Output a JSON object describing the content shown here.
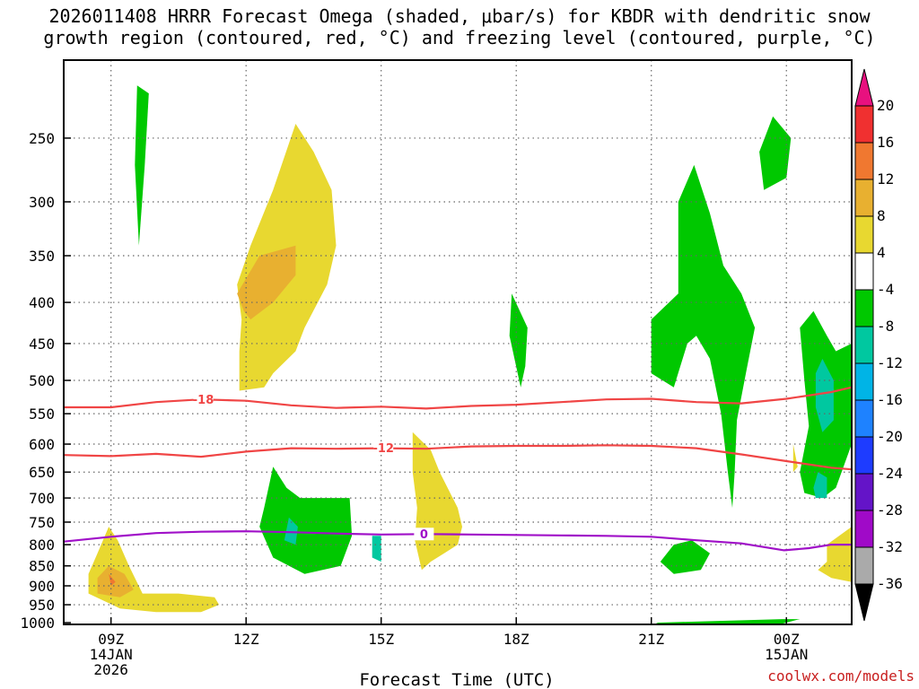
{
  "title": {
    "line1": "2026011408 HRRR Forecast Omega (shaded, μbar/s) for KBDR with dendritic snow",
    "line2": "growth region (contoured, red, °C) and freezing level (contoured, purple, °C)"
  },
  "credit": "coolwx.com/models",
  "chart_data": {
    "type": "contour-time-height",
    "title": "2026011408 HRRR Forecast Omega (shaded, μbar/s) for KBDR with dendritic snow growth region (contoured, red, °C) and freezing level (contoured, purple, °C)",
    "xlabel": "Forecast Time (UTC)",
    "ylabel": "",
    "x_range_hours_from_09Z": [
      -1.05,
      16.45
    ],
    "y_axis": {
      "scale": "log-pressure",
      "range_hPa": [
        1005,
        200
      ],
      "inverted": true
    },
    "x_ticks": [
      {
        "hours": 0,
        "lines": [
          "09Z",
          "14JAN",
          "2026"
        ]
      },
      {
        "hours": 3,
        "lines": [
          "12Z"
        ]
      },
      {
        "hours": 6,
        "lines": [
          "15Z"
        ]
      },
      {
        "hours": 9,
        "lines": [
          "18Z"
        ]
      },
      {
        "hours": 12,
        "lines": [
          "21Z"
        ]
      },
      {
        "hours": 15,
        "lines": [
          "00Z",
          "15JAN"
        ]
      }
    ],
    "y_ticks": [
      250,
      300,
      350,
      400,
      450,
      500,
      550,
      600,
      650,
      700,
      750,
      800,
      850,
      900,
      950,
      1000
    ],
    "colorbar": {
      "labels": [
        "20",
        "16",
        "12",
        "8",
        "4",
        "-4",
        "-8",
        "-12",
        "-16",
        "-20",
        "-24",
        "-28",
        "-32",
        "-36"
      ],
      "colors": [
        "#e8117f",
        "#f03030",
        "#f07830",
        "#e8b030",
        "#e8d830",
        "#ffffff",
        "#00c800",
        "#00c8a0",
        "#00b4e6",
        "#1e82ff",
        "#1e3cff",
        "#6414c8",
        "#a00ac8",
        "#aaaaaa",
        "#000000"
      ]
    },
    "omega_shading": [
      {
        "level": "-4 to -8",
        "color": "#00c800",
        "polygons": [
          [
            [
              0.58,
              215
            ],
            [
              0.84,
              220
            ],
            [
              0.75,
              270
            ],
            [
              0.62,
              340
            ],
            [
              0.53,
              270
            ]
          ],
          [
            [
              3.4,
              720
            ],
            [
              3.6,
              640
            ],
            [
              3.9,
              680
            ],
            [
              4.2,
              700
            ],
            [
              5.3,
              700
            ],
            [
              5.35,
              780
            ],
            [
              5.1,
              850
            ],
            [
              4.3,
              870
            ],
            [
              3.6,
              830
            ],
            [
              3.3,
              760
            ]
          ],
          [
            [
              8.9,
              390
            ],
            [
              9.25,
              430
            ],
            [
              9.2,
              480
            ],
            [
              9.1,
              510
            ],
            [
              8.85,
              440
            ]
          ],
          [
            [
              12.5,
              800
            ],
            [
              12.9,
              790
            ],
            [
              13.3,
              820
            ],
            [
              13.1,
              860
            ],
            [
              12.5,
              870
            ],
            [
              12.2,
              840
            ]
          ],
          [
            [
              12.1,
              1000
            ],
            [
              14.9,
              990
            ],
            [
              15.3,
              990
            ],
            [
              14.7,
              1010
            ],
            [
              12.3,
              1010
            ]
          ],
          [
            [
              14.4,
              260
            ],
            [
              14.7,
              235
            ],
            [
              15.1,
              250
            ],
            [
              15.0,
              280
            ],
            [
              14.5,
              290
            ]
          ],
          [
            [
              15.9,
              440
            ],
            [
              16.1,
              460
            ],
            [
              16.45,
              450
            ],
            [
              16.45,
              600
            ],
            [
              16.1,
              680
            ],
            [
              15.8,
              700
            ],
            [
              15.4,
              690
            ],
            [
              15.3,
              650
            ],
            [
              15.5,
              570
            ],
            [
              15.4,
              500
            ],
            [
              15.3,
              430
            ],
            [
              15.6,
              410
            ]
          ],
          [
            [
              12.6,
              300
            ],
            [
              12.95,
              270
            ],
            [
              13.3,
              310
            ],
            [
              13.6,
              360
            ],
            [
              14.0,
              390
            ],
            [
              14.3,
              430
            ],
            [
              14.1,
              490
            ],
            [
              13.9,
              560
            ],
            [
              13.85,
              650
            ],
            [
              13.8,
              720
            ],
            [
              13.7,
              650
            ],
            [
              13.55,
              550
            ],
            [
              13.3,
              470
            ],
            [
              13.0,
              440
            ],
            [
              12.8,
              450
            ],
            [
              12.5,
              510
            ],
            [
              12.0,
              490
            ],
            [
              12.0,
              420
            ],
            [
              12.6,
              390
            ]
          ]
        ]
      },
      {
        "level": "-8 to -12",
        "color": "#00c8a0",
        "polygons": [
          [
            [
              3.95,
              740
            ],
            [
              4.15,
              760
            ],
            [
              4.1,
              800
            ],
            [
              3.85,
              790
            ]
          ],
          [
            [
              5.8,
              780
            ],
            [
              6.0,
              780
            ],
            [
              6.0,
              840
            ],
            [
              5.8,
              830
            ]
          ],
          [
            [
              15.8,
              470
            ],
            [
              16.05,
              500
            ],
            [
              16.05,
              560
            ],
            [
              15.8,
              580
            ],
            [
              15.65,
              540
            ],
            [
              15.65,
              490
            ]
          ],
          [
            [
              15.7,
              650
            ],
            [
              15.9,
              660
            ],
            [
              15.9,
              700
            ],
            [
              15.65,
              700
            ],
            [
              15.6,
              680
            ]
          ]
        ]
      },
      {
        "level": "4 to 8",
        "color": "#e8d830",
        "polygons": [
          [
            [
              2.8,
              380
            ],
            [
              3.1,
              340
            ],
            [
              3.6,
              290
            ],
            [
              4.1,
              240
            ],
            [
              4.5,
              260
            ],
            [
              4.9,
              290
            ],
            [
              5.0,
              340
            ],
            [
              4.8,
              380
            ],
            [
              4.3,
              430
            ],
            [
              4.1,
              460
            ],
            [
              3.6,
              490
            ],
            [
              3.4,
              510
            ],
            [
              2.85,
              515
            ],
            [
              2.85,
              460
            ],
            [
              2.9,
              420
            ]
          ],
          [
            [
              6.7,
              580
            ],
            [
              7.1,
              610
            ],
            [
              7.3,
              650
            ],
            [
              7.7,
              720
            ],
            [
              7.8,
              760
            ],
            [
              7.7,
              800
            ],
            [
              7.4,
              820
            ],
            [
              7.1,
              840
            ],
            [
              6.9,
              860
            ],
            [
              6.75,
              790
            ],
            [
              6.8,
              720
            ],
            [
              6.7,
              650
            ],
            [
              6.7,
              610
            ]
          ],
          [
            [
              -0.5,
              870
            ],
            [
              -0.3,
              820
            ],
            [
              -0.05,
              760
            ],
            [
              0.15,
              790
            ],
            [
              0.4,
              850
            ],
            [
              0.7,
              920
            ],
            [
              1.5,
              920
            ],
            [
              2.3,
              930
            ],
            [
              2.4,
              950
            ],
            [
              2.0,
              970
            ],
            [
              1.0,
              970
            ],
            [
              0.2,
              960
            ],
            [
              -0.5,
              920
            ]
          ],
          [
            [
              15.15,
              600
            ],
            [
              15.25,
              640
            ],
            [
              15.15,
              650
            ]
          ],
          [
            [
              15.9,
              800
            ],
            [
              16.45,
              760
            ],
            [
              16.45,
              890
            ],
            [
              16.0,
              880
            ],
            [
              15.7,
              860
            ],
            [
              15.9,
              840
            ]
          ]
        ]
      },
      {
        "level": "8 to 12",
        "color": "#e8b030",
        "polygons": [
          [
            [
              2.8,
              390
            ],
            [
              3.3,
              350
            ],
            [
              4.1,
              340
            ],
            [
              4.1,
              370
            ],
            [
              3.6,
              400
            ],
            [
              3.1,
              420
            ],
            [
              2.95,
              410
            ]
          ],
          [
            [
              -0.3,
              880
            ],
            [
              -0.05,
              850
            ],
            [
              0.3,
              870
            ],
            [
              0.5,
              910
            ],
            [
              0.2,
              930
            ],
            [
              -0.3,
              920
            ]
          ]
        ]
      },
      {
        "level": "12 to 16",
        "color": "#f07830",
        "polygons": [
          [
            [
              -0.05,
              870
            ],
            [
              0.1,
              890
            ],
            [
              0.0,
              900
            ]
          ]
        ]
      }
    ],
    "contours": [
      {
        "name": "dendritic snow growth region",
        "color": "#f04545",
        "labels": [
          {
            "text": "-18",
            "x": 2.05
          }
        ],
        "points": [
          [
            -1.05,
            540
          ],
          [
            0,
            540
          ],
          [
            1,
            532
          ],
          [
            2,
            528
          ],
          [
            3,
            530
          ],
          [
            4,
            537
          ],
          [
            5,
            541
          ],
          [
            6,
            539
          ],
          [
            7,
            542
          ],
          [
            8,
            538
          ],
          [
            9,
            536
          ],
          [
            10,
            532
          ],
          [
            11,
            528
          ],
          [
            12,
            527
          ],
          [
            13,
            532
          ],
          [
            14,
            534
          ],
          [
            15,
            527
          ],
          [
            16,
            517
          ],
          [
            16.45,
            510
          ]
        ]
      },
      {
        "name": "dendritic snow growth region",
        "color": "#f04545",
        "labels": [
          {
            "text": "-12",
            "x": 6.05
          }
        ],
        "points": [
          [
            -1.05,
            619
          ],
          [
            0,
            621
          ],
          [
            1,
            617
          ],
          [
            2,
            622
          ],
          [
            3,
            613
          ],
          [
            4,
            607
          ],
          [
            5,
            608
          ],
          [
            6,
            607
          ],
          [
            7,
            608
          ],
          [
            8,
            604
          ],
          [
            9,
            603
          ],
          [
            10,
            603
          ],
          [
            11,
            602
          ],
          [
            12,
            603
          ],
          [
            13,
            607
          ],
          [
            14,
            618
          ],
          [
            15,
            630
          ],
          [
            16,
            642
          ],
          [
            16.45,
            645
          ]
        ]
      },
      {
        "name": "freezing level",
        "color": "#a010c8",
        "labels": [
          {
            "text": "0",
            "x": 6.95
          }
        ],
        "points": [
          [
            -1.05,
            793
          ],
          [
            0,
            782
          ],
          [
            1,
            774
          ],
          [
            2,
            771
          ],
          [
            3,
            770
          ],
          [
            4,
            772
          ],
          [
            5,
            775
          ],
          [
            6,
            777
          ],
          [
            7,
            776
          ],
          [
            8,
            777
          ],
          [
            9,
            778
          ],
          [
            10,
            779
          ],
          [
            11,
            780
          ],
          [
            12,
            782
          ],
          [
            13,
            790
          ],
          [
            14,
            797
          ],
          [
            14.95,
            813
          ],
          [
            15.5,
            808
          ],
          [
            16,
            800
          ],
          [
            16.45,
            800
          ]
        ]
      }
    ],
    "terrain": {
      "color": "#a0522d",
      "surface_hPa": [
        [
          -1.05,
          1013
        ],
        [
          16.45,
          1003
        ]
      ]
    }
  }
}
